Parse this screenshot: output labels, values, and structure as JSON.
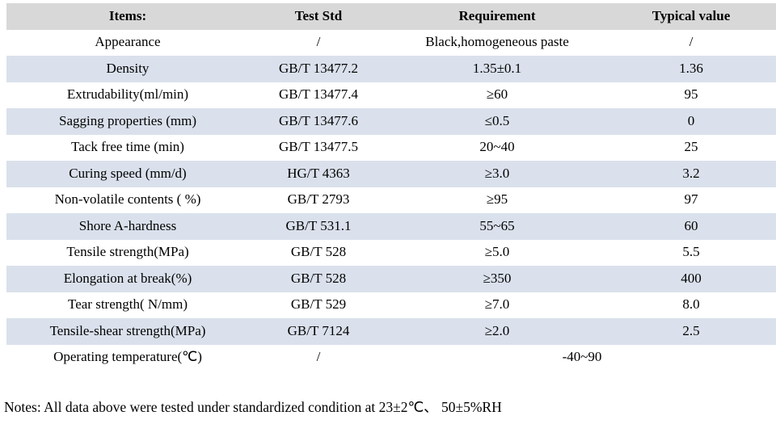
{
  "colors": {
    "header_bg": "#d8d8d8",
    "band_bg": "#dae1ec",
    "row_bg": "#ffffff",
    "text": "#000000"
  },
  "table": {
    "columns": [
      "Items:",
      "Test Std",
      "Requirement",
      "Typical value"
    ],
    "rows": [
      {
        "item": "Appearance",
        "std": "/",
        "req": "Black,homogeneous paste",
        "typ": "/",
        "shaded": false,
        "merged": false
      },
      {
        "item": "Density",
        "std": "GB/T 13477.2",
        "req": "1.35±0.1",
        "typ": "1.36",
        "shaded": true,
        "merged": false
      },
      {
        "item": "Extrudability(ml/min)",
        "std": "GB/T 13477.4",
        "req": "≥60",
        "typ": "95",
        "shaded": false,
        "merged": false
      },
      {
        "item": "Sagging properties (mm)",
        "std": "GB/T 13477.6",
        "req": "≤0.5",
        "typ": "0",
        "shaded": true,
        "merged": false
      },
      {
        "item": "Tack free time (min)",
        "std": "GB/T 13477.5",
        "req": "20~40",
        "typ": "25",
        "shaded": false,
        "merged": false
      },
      {
        "item": "Curing speed (mm/d)",
        "std": "HG/T 4363",
        "req": "≥3.0",
        "typ": "3.2",
        "shaded": true,
        "merged": false
      },
      {
        "item": "Non-volatile contents ( %)",
        "std": "GB/T 2793",
        "req": "≥95",
        "typ": "97",
        "shaded": false,
        "merged": false
      },
      {
        "item": "Shore A-hardness",
        "std": "GB/T 531.1",
        "req": "55~65",
        "typ": "60",
        "shaded": true,
        "merged": false
      },
      {
        "item": "Tensile strength(MPa)",
        "std": "GB/T 528",
        "req": "≥5.0",
        "typ": "5.5",
        "shaded": false,
        "merged": false
      },
      {
        "item": "Elongation at break(%)",
        "std": "GB/T 528",
        "req": "≥350",
        "typ": "400",
        "shaded": true,
        "merged": false
      },
      {
        "item": "Tear strength( N/mm)",
        "std": "GB/T 529",
        "req": "≥7.0",
        "typ": "8.0",
        "shaded": false,
        "merged": false
      },
      {
        "item": "Tensile-shear strength(MPa)",
        "std": "GB/T 7124",
        "req": "≥2.0",
        "typ": "2.5",
        "shaded": true,
        "merged": false
      },
      {
        "item": "Operating temperature(℃)",
        "std": "/",
        "req": "-40~90",
        "typ": null,
        "shaded": false,
        "merged": true
      }
    ]
  },
  "notes": "Notes: All data above were tested under standardized condition at 23±2℃、 50±5%RH"
}
